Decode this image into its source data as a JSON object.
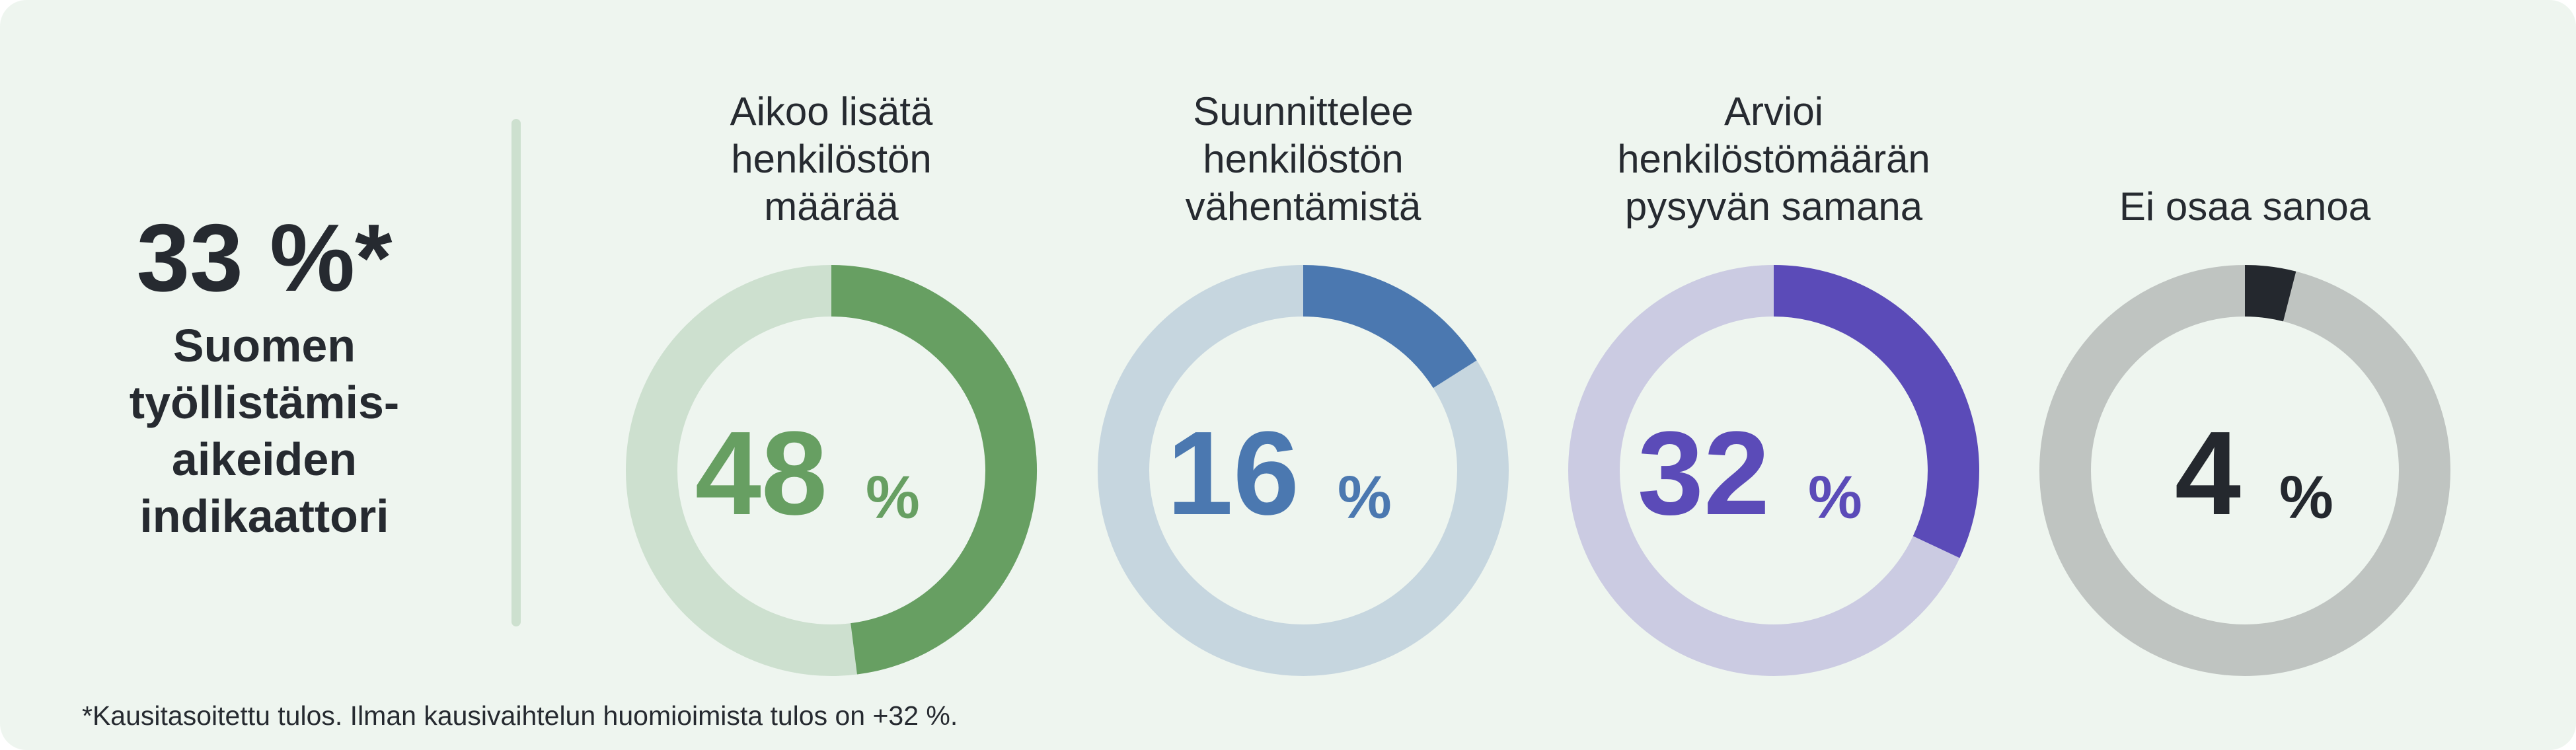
{
  "headline": {
    "value": "33 %*",
    "label": "Suomen\ntyöllistämis-\naikeiden\nindikaattori"
  },
  "footnote": "*Kausitasoitettu tulos. Ilman kausivaihtelun huomioimista tulos on +32 %.",
  "chart_data": {
    "type": "donut",
    "unit": "%",
    "series": [
      {
        "label": "Aikoo lisätä\nhenkilöstön\nmäärää",
        "value": 48,
        "color": "#679f62",
        "track": "#cde0cf"
      },
      {
        "label": "Suunnittelee\nhenkilöstön\nvähentämistä",
        "value": 16,
        "color": "#4b78b0",
        "track": "#c6d6df"
      },
      {
        "label": "Arvioi\nhenkilöstömäärän\npysyvän samana",
        "value": 32,
        "color": "#5b4bb8",
        "track": "#cbcbe2"
      },
      {
        "label": "Ei osaa sanoa",
        "value": 4,
        "color": "#24282e",
        "track": "#bfc4c1"
      }
    ]
  }
}
